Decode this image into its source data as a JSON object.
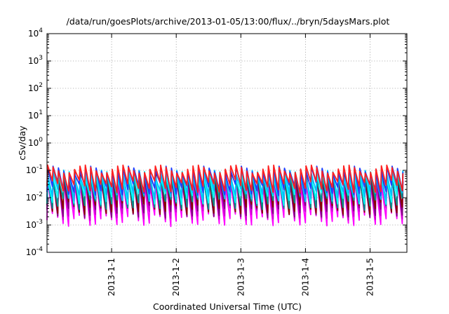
{
  "chart_data": {
    "type": "line",
    "title": "/data/run/goesPlots/archive/2013-01-05/13:00/flux/../bryn/5daysMars.plot",
    "xlabel": "Coordinated Universal Time (UTC)",
    "ylabel": "cSv/day",
    "yscale": "log",
    "ylim": [
      0.0001,
      10000
    ],
    "xlim_days": [
      0,
      5.57
    ],
    "y_ticks": [
      {
        "base": "10",
        "exp": "4"
      },
      {
        "base": "10",
        "exp": "3"
      },
      {
        "base": "10",
        "exp": "2"
      },
      {
        "base": "10",
        "exp": "1"
      },
      {
        "base": "10",
        "exp": "0"
      },
      {
        "base": "10",
        "exp": "-1"
      },
      {
        "base": "10",
        "exp": "-2"
      },
      {
        "base": "10",
        "exp": "-3"
      },
      {
        "base": "10",
        "exp": "-4"
      }
    ],
    "x_ticks": [
      "2013-1-1",
      "2013-1-2",
      "2013-1-3",
      "2013-1-4",
      "2013-1-5"
    ],
    "x_tick_days": [
      1,
      2,
      3,
      4,
      5
    ],
    "grid": true,
    "legend": "none",
    "period_days": 0.0833,
    "series": [
      {
        "color": "#ff00ff",
        "peak": 0.04,
        "trough": 0.0015
      },
      {
        "color": "#cc00cc",
        "peak": 0.05,
        "trough": 0.0025
      },
      {
        "color": "#800080",
        "peak": 0.055,
        "trough": 0.003
      },
      {
        "color": "#8b0000",
        "peak": 0.07,
        "trough": 0.004
      },
      {
        "color": "#009090",
        "peak": 0.06,
        "trough": 0.006
      },
      {
        "color": "#00ffff",
        "peak": 0.07,
        "trough": 0.009
      },
      {
        "color": "#00bfff",
        "peak": 0.08,
        "trough": 0.012
      },
      {
        "color": "#1e3cff",
        "peak": 0.1,
        "trough": 0.02
      },
      {
        "color": "#ff2020",
        "peak": 0.11,
        "trough": 0.025
      }
    ]
  }
}
